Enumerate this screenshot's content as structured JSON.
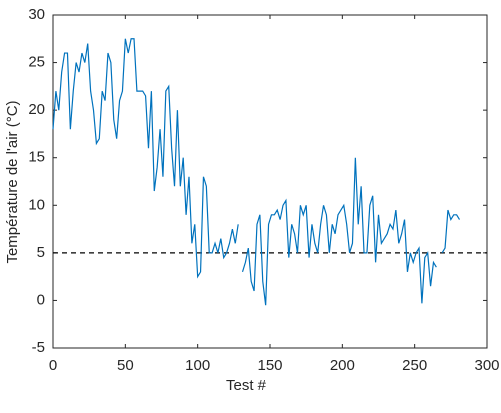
{
  "chart_data": {
    "type": "line",
    "x_label": "Test #",
    "y_label": "Température de l'air (°C)",
    "xlim": [
      0,
      300
    ],
    "xticks": [
      0,
      50,
      100,
      150,
      200,
      250,
      300
    ],
    "ylim": [
      -5,
      30
    ],
    "yticks": [
      -5,
      0,
      5,
      10,
      15,
      20,
      25,
      30
    ],
    "reference_line": 5,
    "reference_color": "#000000",
    "x": [
      0,
      2,
      4,
      6,
      8,
      10,
      12,
      14,
      16,
      18,
      20,
      22,
      24,
      26,
      28,
      30,
      32,
      34,
      36,
      38,
      40,
      42,
      44,
      46,
      48,
      50,
      52,
      54,
      56,
      58,
      60,
      62,
      64,
      66,
      68,
      70,
      72,
      74,
      76,
      78,
      80,
      82,
      84,
      86,
      88,
      90,
      92,
      94,
      96,
      98,
      100,
      102,
      104,
      106,
      108,
      110,
      112,
      114,
      116,
      118,
      120,
      122,
      124,
      126,
      128,
      129,
      131,
      133,
      135,
      137,
      139,
      141,
      143,
      145,
      147,
      149,
      151,
      153,
      155,
      157,
      159,
      161,
      163,
      165,
      167,
      169,
      171,
      173,
      175,
      177,
      179,
      181,
      183,
      185,
      187,
      189,
      191,
      193,
      195,
      197,
      199,
      201,
      203,
      205,
      207,
      209,
      211,
      213,
      215,
      217,
      219,
      221,
      223,
      225,
      227,
      229,
      231,
      233,
      235,
      237,
      239,
      241,
      243,
      245,
      247,
      249,
      251,
      253,
      255,
      257,
      259,
      261,
      263,
      265,
      267,
      269,
      271,
      273,
      275,
      277,
      279,
      281
    ],
    "series": [
      {
        "color": "#0072bd",
        "values": [
          18,
          22,
          20,
          24,
          26,
          26,
          18,
          22,
          25,
          24,
          26,
          25,
          27,
          22,
          20,
          16.5,
          17,
          22,
          21,
          26,
          25,
          19,
          17,
          21,
          22,
          27.5,
          26,
          27.5,
          27.5,
          22,
          22,
          22,
          21.5,
          16,
          22,
          11.5,
          14,
          18,
          13,
          22,
          22.5,
          16,
          12,
          20,
          12,
          15,
          9,
          13,
          6,
          8,
          2.5,
          3,
          13,
          12,
          5,
          5,
          6,
          5,
          6.5,
          4.5,
          5,
          6,
          7.5,
          6,
          8,
          null,
          3,
          4,
          5.5,
          2,
          1,
          8,
          9,
          2,
          -0.5,
          8,
          9,
          9,
          9.5,
          8.5,
          10,
          10.5,
          4.5,
          8,
          7,
          5,
          10,
          9,
          10,
          4.5,
          8,
          6,
          5,
          8,
          10,
          9,
          5,
          8,
          7,
          9,
          9.5,
          10,
          8,
          5,
          6,
          15,
          8,
          12,
          5,
          5,
          10,
          11,
          4,
          9,
          6,
          6.5,
          7,
          8,
          7.5,
          9.5,
          6,
          7,
          8.5,
          3,
          5,
          4,
          5,
          5.5,
          -0.3,
          4.5,
          5,
          1.5,
          4,
          3.5,
          null,
          5,
          5.5,
          9.5,
          8.5,
          9,
          9,
          8.5
        ]
      }
    ]
  }
}
